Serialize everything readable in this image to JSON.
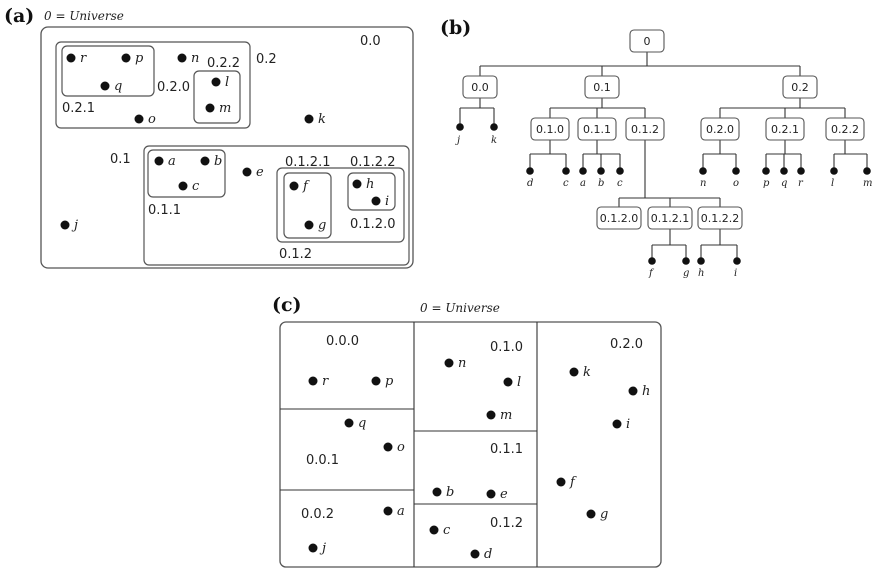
{
  "panel_a": {
    "tag": "(a)",
    "caption": "0 = Universe",
    "labels": {
      "r00": "0.0",
      "r02": "0.2",
      "r020": "0.2.0",
      "r021": "0.2.1",
      "r022": "0.2.2",
      "r01": "0.1",
      "r011": "0.1.1",
      "r012": "0.1.2",
      "r0121": "0.1.2.1",
      "r0122": "0.1.2.2",
      "r0120": "0.1.2.0"
    },
    "points": {
      "r": "r",
      "p": "p",
      "n": "n",
      "q": "q",
      "l": "l",
      "m": "m",
      "o": "o",
      "k": "k",
      "a": "a",
      "b": "b",
      "c": "c",
      "e": "e",
      "f": "f",
      "g": "g",
      "h": "h",
      "i": "i",
      "j": "j"
    }
  },
  "panel_b": {
    "tag": "(b)",
    "nodes": {
      "n0": "0",
      "n00": "0.0",
      "n01": "0.1",
      "n02": "0.2",
      "n010": "0.1.0",
      "n011": "0.1.1",
      "n012": "0.1.2",
      "n020": "0.2.0",
      "n021": "0.2.1",
      "n022": "0.2.2",
      "n0120": "0.1.2.0",
      "n0121": "0.1.2.1",
      "n0122": "0.1.2.2"
    },
    "leaves": {
      "j": "j",
      "k": "k",
      "d": "d",
      "c1": "c",
      "a": "a",
      "b": "b",
      "c2": "c",
      "n": "n",
      "o": "o",
      "p": "p",
      "q": "q",
      "r": "r",
      "l": "l",
      "m": "m",
      "f": "f",
      "g": "g",
      "h": "h",
      "i": "i"
    }
  },
  "panel_c": {
    "tag": "(c)",
    "caption": "0 = Universe",
    "cells": {
      "c000": "0.0.0",
      "c001": "0.0.1",
      "c002": "0.0.2",
      "c010": "0.1.0",
      "c011": "0.1.1",
      "c012": "0.1.2",
      "c020": "0.2.0"
    },
    "points": {
      "r": "r",
      "p": "p",
      "q": "q",
      "o": "o",
      "a": "a",
      "j": "j",
      "n": "n",
      "l": "l",
      "m": "m",
      "b": "b",
      "e": "e",
      "c": "c",
      "d": "d",
      "k": "k",
      "h": "h",
      "i": "i",
      "f": "f",
      "g": "g"
    }
  }
}
